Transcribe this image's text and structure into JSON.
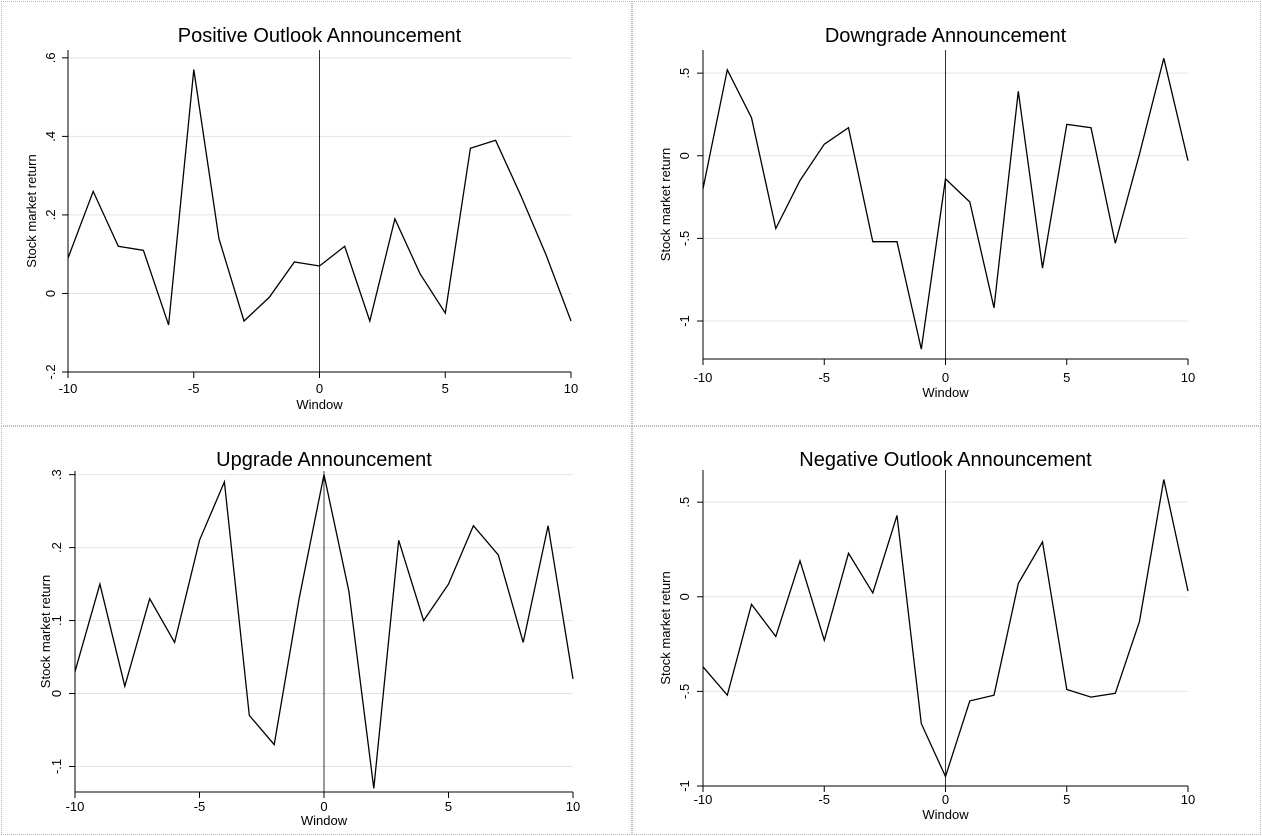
{
  "chart_data": [
    {
      "type": "line",
      "title": "Positive Outlook Announcement",
      "xlabel": "Window",
      "ylabel": "Stock market return",
      "xlim": [
        -10,
        10
      ],
      "ylim": [
        -0.2,
        0.62
      ],
      "xticks": [
        -10,
        -5,
        0,
        5,
        10
      ],
      "xtick_labels": [
        "-10",
        "-5",
        "0",
        "5",
        "10"
      ],
      "yticks": [
        -0.2,
        0,
        0.2,
        0.4,
        0.6
      ],
      "ytick_labels": [
        "-.2",
        "0",
        ".2",
        ".4",
        ".6"
      ],
      "grid": true,
      "vline_x": 0,
      "x": [
        -10,
        -9,
        -8,
        -7,
        -6,
        -5,
        -4,
        -3,
        -2,
        -1,
        0,
        1,
        2,
        3,
        4,
        5,
        6,
        7,
        8,
        9,
        10
      ],
      "values": [
        0.09,
        0.26,
        0.12,
        0.11,
        -0.08,
        0.57,
        0.14,
        -0.07,
        -0.01,
        0.08,
        0.07,
        0.12,
        -0.07,
        0.19,
        0.05,
        -0.05,
        0.37,
        0.39,
        0.25,
        0.1,
        -0.07
      ]
    },
    {
      "type": "line",
      "title": "Downgrade Announcement",
      "xlabel": "Window",
      "ylabel": "Stock market return",
      "xlim": [
        -10,
        10
      ],
      "ylim": [
        -1.23,
        0.64
      ],
      "xticks": [
        -10,
        -5,
        0,
        5,
        10
      ],
      "xtick_labels": [
        "-10",
        "-5",
        "0",
        "5",
        "10"
      ],
      "yticks": [
        -1,
        -0.5,
        0,
        0.5
      ],
      "ytick_labels": [
        "-1",
        "-.5",
        "0",
        ".5"
      ],
      "grid": true,
      "vline_x": 0,
      "x": [
        -10,
        -9,
        -8,
        -7,
        -6,
        -5,
        -4,
        -3,
        -2,
        -1,
        0,
        1,
        2,
        3,
        4,
        5,
        6,
        7,
        8,
        9,
        10
      ],
      "values": [
        -0.2,
        0.52,
        0.23,
        -0.44,
        -0.15,
        0.07,
        0.17,
        -0.52,
        -0.52,
        -1.17,
        -0.14,
        -0.28,
        -0.92,
        0.39,
        -0.68,
        0.19,
        0.17,
        -0.53,
        0.01,
        0.59,
        -0.03
      ]
    },
    {
      "type": "line",
      "title": "Upgrade Announcement",
      "xlabel": "Window",
      "ylabel": "Stock market return",
      "xlim": [
        -10,
        10
      ],
      "ylim": [
        -0.135,
        0.305
      ],
      "xticks": [
        -10,
        -5,
        0,
        5,
        10
      ],
      "xtick_labels": [
        "-10",
        "-5",
        "0",
        "5",
        "10"
      ],
      "yticks": [
        -0.1,
        0,
        0.1,
        0.2,
        0.3
      ],
      "ytick_labels": [
        "-.1",
        "0",
        ".1",
        ".2",
        ".3"
      ],
      "grid": true,
      "vline_x": 0,
      "x": [
        -10,
        -9,
        -8,
        -7,
        -6,
        -5,
        -4,
        -3,
        -2,
        -1,
        0,
        1,
        2,
        3,
        4,
        5,
        6,
        7,
        8,
        9,
        10
      ],
      "values": [
        0.03,
        0.15,
        0.01,
        0.13,
        0.07,
        0.21,
        0.29,
        -0.03,
        -0.07,
        0.13,
        0.3,
        0.14,
        -0.13,
        0.21,
        0.1,
        0.15,
        0.23,
        0.19,
        0.07,
        0.23,
        0.02
      ]
    },
    {
      "type": "line",
      "title": "Negative Outlook Announcement",
      "xlabel": "Window",
      "ylabel": "Stock market return",
      "xlim": [
        -10,
        10
      ],
      "ylim": [
        -1.0,
        0.67
      ],
      "xticks": [
        -10,
        -5,
        0,
        5,
        10
      ],
      "xtick_labels": [
        "-10",
        "-5",
        "0",
        "5",
        "10"
      ],
      "yticks": [
        -1,
        -0.5,
        0,
        0.5
      ],
      "ytick_labels": [
        "-1",
        "-.5",
        "0",
        ".5"
      ],
      "grid": true,
      "vline_x": 0,
      "x": [
        -10,
        -9,
        -8,
        -7,
        -6,
        -5,
        -4,
        -3,
        -2,
        -1,
        0,
        1,
        2,
        3,
        4,
        5,
        6,
        7,
        8,
        9,
        10
      ],
      "values": [
        -0.37,
        -0.52,
        -0.04,
        -0.21,
        0.19,
        -0.23,
        0.23,
        0.02,
        0.43,
        -0.67,
        -0.95,
        -0.55,
        -0.52,
        0.07,
        0.29,
        -0.49,
        -0.53,
        -0.51,
        -0.13,
        0.62,
        0.03
      ]
    }
  ]
}
